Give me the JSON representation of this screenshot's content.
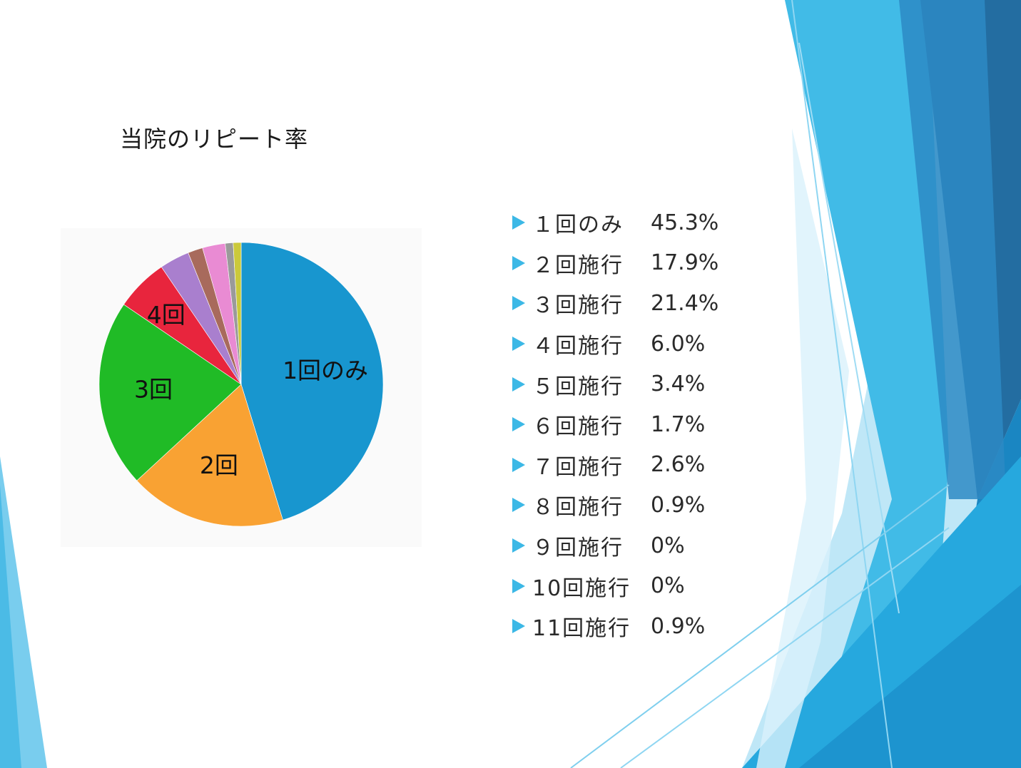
{
  "title": "当院のリピート率",
  "chart_data": {
    "type": "pie",
    "title": "当院のリピート率",
    "slices": [
      {
        "label": "1回のみ",
        "value": 45.3,
        "color": "#1896cf",
        "chart_label": "1回のみ"
      },
      {
        "label": "2回施行",
        "value": 17.9,
        "color": "#f9a233",
        "chart_label": "2回"
      },
      {
        "label": "3回施行",
        "value": 21.4,
        "color": "#20bb26",
        "chart_label": "3回"
      },
      {
        "label": "4回施行",
        "value": 6.0,
        "color": "#e8253d",
        "chart_label": "4回"
      },
      {
        "label": "5回施行",
        "value": 3.4,
        "color": "#a97fce",
        "chart_label": ""
      },
      {
        "label": "6回施行",
        "value": 1.7,
        "color": "#a86a5c",
        "chart_label": ""
      },
      {
        "label": "7回施行",
        "value": 2.6,
        "color": "#e98bd3",
        "chart_label": ""
      },
      {
        "label": "8回施行",
        "value": 0.9,
        "color": "#9a9a9a",
        "chart_label": ""
      },
      {
        "label": "9回施行",
        "value": 0,
        "color": "#bfbf3a",
        "chart_label": ""
      },
      {
        "label": "10回施行",
        "value": 0,
        "color": "#3fc0d8",
        "chart_label": ""
      },
      {
        "label": "11回施行",
        "value": 0.9,
        "color": "#cbc93b",
        "chart_label": ""
      }
    ]
  },
  "stats": [
    {
      "label": "１回のみ",
      "value": "45.3%"
    },
    {
      "label": "２回施行",
      "value": "17.9%"
    },
    {
      "label": "３回施行",
      "value": "21.4%"
    },
    {
      "label": "４回施行",
      "value": "6.0%"
    },
    {
      "label": "５回施行",
      "value": "3.4%"
    },
    {
      "label": "６回施行",
      "value": "1.7%"
    },
    {
      "label": "７回施行",
      "value": "2.6%"
    },
    {
      "label": "８回施行",
      "value": "0.9%"
    },
    {
      "label": "９回施行",
      "value": "0%"
    },
    {
      "label": "10回施行",
      "value": "0%"
    },
    {
      "label": "11回施行",
      "value": "0.9%"
    }
  ],
  "theme": {
    "bullet_color": "#3cb8e6",
    "deco_dark": "#1f6fa6",
    "deco_mid": "#2aa6dc",
    "deco_light": "#8fd6f2"
  }
}
